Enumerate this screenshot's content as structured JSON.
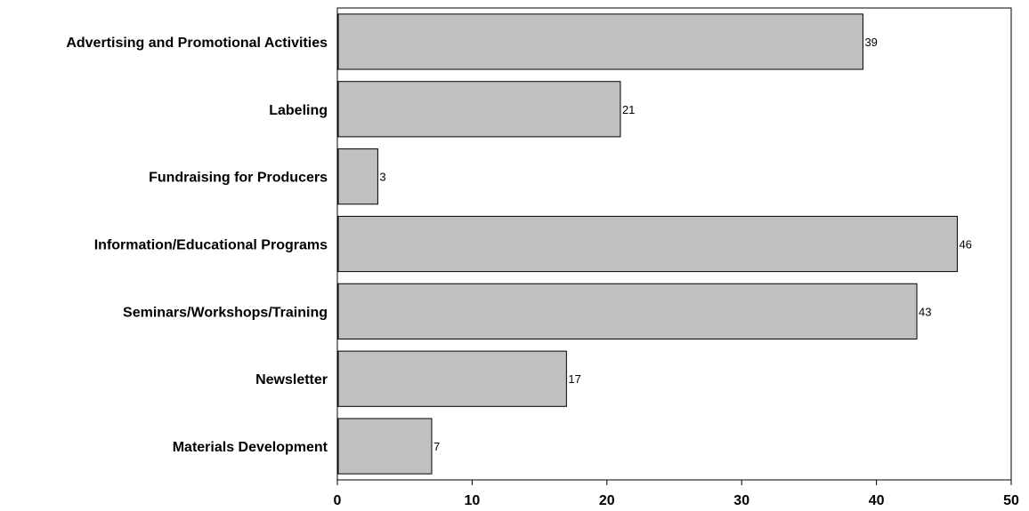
{
  "chart_data": {
    "type": "bar",
    "orientation": "horizontal",
    "categories": [
      "Advertising and Promotional Activities",
      "Labeling",
      "Fundraising for Producers",
      "Information/Educational Programs",
      "Seminars/Workshops/Training",
      "Newsletter",
      "Materials Development"
    ],
    "values": [
      39,
      21,
      3,
      46,
      43,
      17,
      7
    ],
    "xlim": [
      0,
      50
    ],
    "x_ticks": [
      0,
      10,
      20,
      30,
      40,
      50
    ],
    "grid": false,
    "data_labels": true,
    "bar_color": "#c0c0c0"
  }
}
